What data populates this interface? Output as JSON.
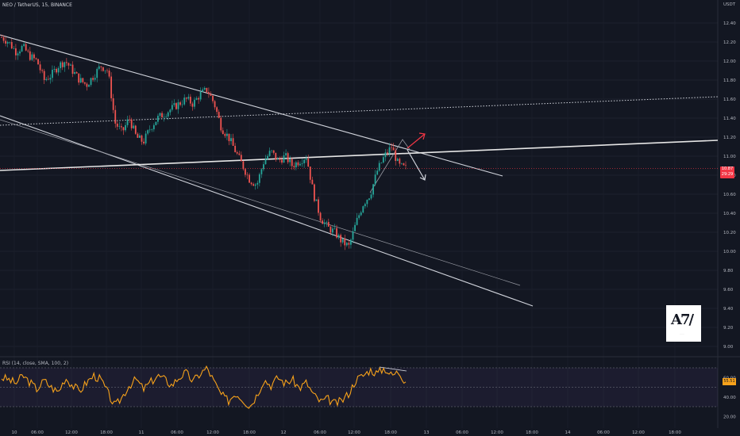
{
  "header": {
    "symbol": "NEO / TetherUS, 15, BINANCE",
    "currency": "USDT"
  },
  "price_tag": {
    "top": "10.87",
    "bottom": "29:29"
  },
  "rsi": {
    "label": "RSI (14, close, SMA, 100, 2)",
    "value_tag": "55.51",
    "axis_labels": [
      "60.00",
      "40.00",
      "20.00"
    ]
  },
  "colors": {
    "background": "#131722",
    "rsi_line": "#f7a21b",
    "candle_up": "#26a69a",
    "candle_down": "#ef5350",
    "price_tag": "#f23645",
    "rsi_band": "#7e57c2"
  },
  "logo": {
    "icon": "logo-icon",
    "alt": ""
  },
  "chart_data": {
    "type": "candlestick",
    "price_axis": [
      "12.40",
      "12.20",
      "12.00",
      "11.80",
      "11.60",
      "11.40",
      "11.20",
      "11.00",
      "10.80",
      "10.60",
      "10.40",
      "10.20",
      "10.00",
      "9.80",
      "9.60",
      "9.40",
      "9.20",
      "9.00"
    ],
    "time_axis": [
      "10",
      "06:00",
      "12:00",
      "18:00",
      "11",
      "06:00",
      "12:00",
      "18:00",
      "12",
      "06:00",
      "12:00",
      "18:00",
      "13",
      "06:00",
      "12:00",
      "18:00",
      "14",
      "06:00",
      "12:00",
      "18:00"
    ],
    "price_path": [
      12.25,
      12.2,
      12.1,
      12.15,
      12.05,
      12.0,
      11.8,
      11.85,
      11.95,
      12.0,
      11.9,
      11.8,
      11.75,
      11.85,
      11.95,
      11.9,
      11.35,
      11.25,
      11.4,
      11.2,
      11.15,
      11.3,
      11.4,
      11.45,
      11.5,
      11.55,
      11.6,
      11.55,
      11.65,
      11.7,
      11.55,
      11.3,
      11.2,
      11.05,
      10.9,
      10.75,
      10.7,
      10.95,
      11.05,
      10.95,
      11.0,
      10.9,
      10.95,
      11.0,
      10.6,
      10.35,
      10.25,
      10.2,
      10.1,
      10.05,
      10.3,
      10.5,
      10.6,
      10.85,
      11.0,
      11.1,
      10.9,
      10.87
    ],
    "rsi_path": [
      60,
      58,
      54,
      62,
      55,
      48,
      57,
      50,
      45,
      60,
      52,
      46,
      55,
      62,
      58,
      44,
      30,
      40,
      52,
      58,
      48,
      55,
      62,
      58,
      52,
      60,
      65,
      56,
      64,
      70,
      55,
      42,
      36,
      44,
      38,
      30,
      42,
      58,
      52,
      60,
      54,
      58,
      49,
      55,
      42,
      35,
      38,
      33,
      36,
      44,
      58,
      62,
      68,
      64,
      70,
      62,
      66,
      55.51
    ]
  }
}
